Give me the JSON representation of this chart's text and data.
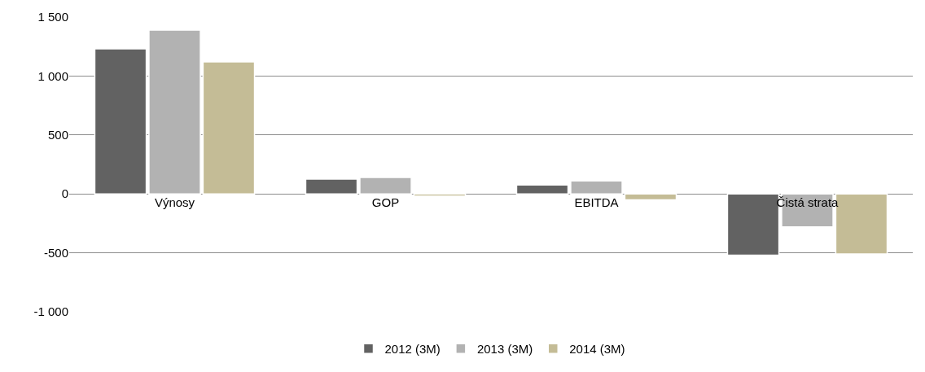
{
  "chart_data": {
    "type": "bar",
    "categories": [
      "Výnosy",
      "GOP",
      "EBITDA",
      "Čistá strata"
    ],
    "series": [
      {
        "name": "2012 (3M)",
        "color": "#626262",
        "values": [
          1230,
          125,
          75,
          -520
        ]
      },
      {
        "name": "2013 (3M)",
        "color": "#b2b2b2",
        "values": [
          1390,
          140,
          110,
          -280
        ]
      },
      {
        "name": "2014 (3M)",
        "color": "#c4bc96",
        "values": [
          1120,
          -20,
          -50,
          -510
        ]
      }
    ],
    "ylim": [
      -1000,
      1500
    ],
    "yticks": [
      {
        "value": -1000,
        "label": "-1 000"
      },
      {
        "value": -500,
        "label": "-500"
      },
      0,
      500,
      {
        "value": 1000,
        "label": "1 000"
      },
      {
        "value": 1500,
        "label": "1 500"
      }
    ],
    "grid": "y",
    "legend": "bottom"
  }
}
